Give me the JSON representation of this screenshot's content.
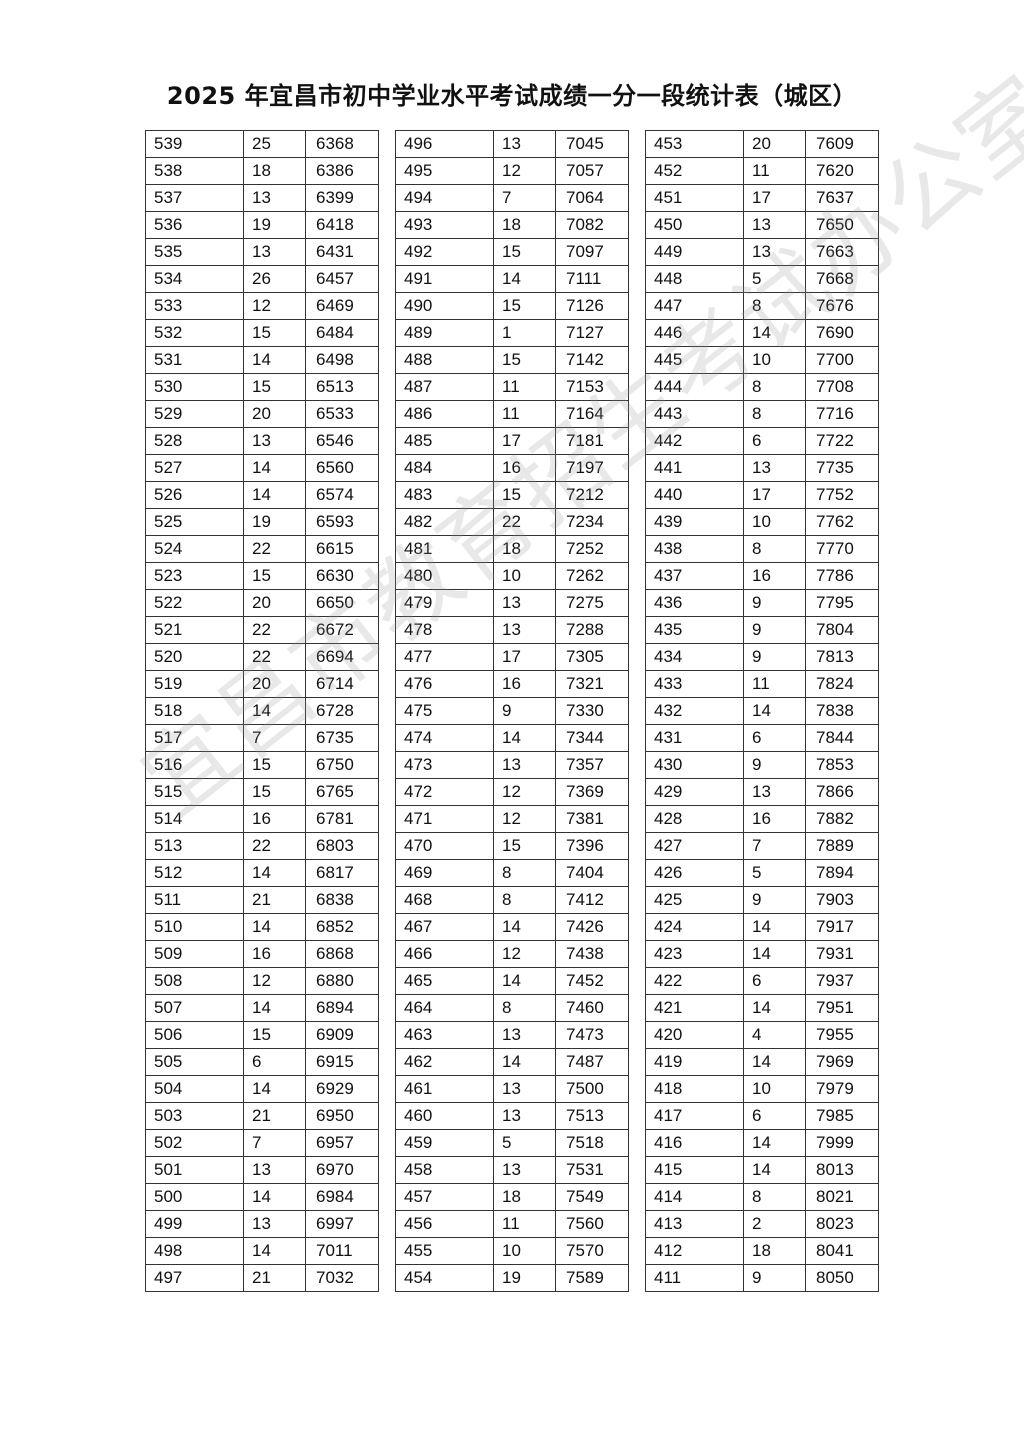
{
  "title": "2025 年宜昌市初中学业水平考试成绩一分一段统计表（城区）",
  "watermark": "宜昌市教育招生考试办公室",
  "tables": [
    [
      [
        "539",
        "25",
        "6368"
      ],
      [
        "538",
        "18",
        "6386"
      ],
      [
        "537",
        "13",
        "6399"
      ],
      [
        "536",
        "19",
        "6418"
      ],
      [
        "535",
        "13",
        "6431"
      ],
      [
        "534",
        "26",
        "6457"
      ],
      [
        "533",
        "12",
        "6469"
      ],
      [
        "532",
        "15",
        "6484"
      ],
      [
        "531",
        "14",
        "6498"
      ],
      [
        "530",
        "15",
        "6513"
      ],
      [
        "529",
        "20",
        "6533"
      ],
      [
        "528",
        "13",
        "6546"
      ],
      [
        "527",
        "14",
        "6560"
      ],
      [
        "526",
        "14",
        "6574"
      ],
      [
        "525",
        "19",
        "6593"
      ],
      [
        "524",
        "22",
        "6615"
      ],
      [
        "523",
        "15",
        "6630"
      ],
      [
        "522",
        "20",
        "6650"
      ],
      [
        "521",
        "22",
        "6672"
      ],
      [
        "520",
        "22",
        "6694"
      ],
      [
        "519",
        "20",
        "6714"
      ],
      [
        "518",
        "14",
        "6728"
      ],
      [
        "517",
        "7",
        "6735"
      ],
      [
        "516",
        "15",
        "6750"
      ],
      [
        "515",
        "15",
        "6765"
      ],
      [
        "514",
        "16",
        "6781"
      ],
      [
        "513",
        "22",
        "6803"
      ],
      [
        "512",
        "14",
        "6817"
      ],
      [
        "511",
        "21",
        "6838"
      ],
      [
        "510",
        "14",
        "6852"
      ],
      [
        "509",
        "16",
        "6868"
      ],
      [
        "508",
        "12",
        "6880"
      ],
      [
        "507",
        "14",
        "6894"
      ],
      [
        "506",
        "15",
        "6909"
      ],
      [
        "505",
        "6",
        "6915"
      ],
      [
        "504",
        "14",
        "6929"
      ],
      [
        "503",
        "21",
        "6950"
      ],
      [
        "502",
        "7",
        "6957"
      ],
      [
        "501",
        "13",
        "6970"
      ],
      [
        "500",
        "14",
        "6984"
      ],
      [
        "499",
        "13",
        "6997"
      ],
      [
        "498",
        "14",
        "7011"
      ],
      [
        "497",
        "21",
        "7032"
      ]
    ],
    [
      [
        "496",
        "13",
        "7045"
      ],
      [
        "495",
        "12",
        "7057"
      ],
      [
        "494",
        "7",
        "7064"
      ],
      [
        "493",
        "18",
        "7082"
      ],
      [
        "492",
        "15",
        "7097"
      ],
      [
        "491",
        "14",
        "7111"
      ],
      [
        "490",
        "15",
        "7126"
      ],
      [
        "489",
        "1",
        "7127"
      ],
      [
        "488",
        "15",
        "7142"
      ],
      [
        "487",
        "11",
        "7153"
      ],
      [
        "486",
        "11",
        "7164"
      ],
      [
        "485",
        "17",
        "7181"
      ],
      [
        "484",
        "16",
        "7197"
      ],
      [
        "483",
        "15",
        "7212"
      ],
      [
        "482",
        "22",
        "7234"
      ],
      [
        "481",
        "18",
        "7252"
      ],
      [
        "480",
        "10",
        "7262"
      ],
      [
        "479",
        "13",
        "7275"
      ],
      [
        "478",
        "13",
        "7288"
      ],
      [
        "477",
        "17",
        "7305"
      ],
      [
        "476",
        "16",
        "7321"
      ],
      [
        "475",
        "9",
        "7330"
      ],
      [
        "474",
        "14",
        "7344"
      ],
      [
        "473",
        "13",
        "7357"
      ],
      [
        "472",
        "12",
        "7369"
      ],
      [
        "471",
        "12",
        "7381"
      ],
      [
        "470",
        "15",
        "7396"
      ],
      [
        "469",
        "8",
        "7404"
      ],
      [
        "468",
        "8",
        "7412"
      ],
      [
        "467",
        "14",
        "7426"
      ],
      [
        "466",
        "12",
        "7438"
      ],
      [
        "465",
        "14",
        "7452"
      ],
      [
        "464",
        "8",
        "7460"
      ],
      [
        "463",
        "13",
        "7473"
      ],
      [
        "462",
        "14",
        "7487"
      ],
      [
        "461",
        "13",
        "7500"
      ],
      [
        "460",
        "13",
        "7513"
      ],
      [
        "459",
        "5",
        "7518"
      ],
      [
        "458",
        "13",
        "7531"
      ],
      [
        "457",
        "18",
        "7549"
      ],
      [
        "456",
        "11",
        "7560"
      ],
      [
        "455",
        "10",
        "7570"
      ],
      [
        "454",
        "19",
        "7589"
      ]
    ],
    [
      [
        "453",
        "20",
        "7609"
      ],
      [
        "452",
        "11",
        "7620"
      ],
      [
        "451",
        "17",
        "7637"
      ],
      [
        "450",
        "13",
        "7650"
      ],
      [
        "449",
        "13",
        "7663"
      ],
      [
        "448",
        "5",
        "7668"
      ],
      [
        "447",
        "8",
        "7676"
      ],
      [
        "446",
        "14",
        "7690"
      ],
      [
        "445",
        "10",
        "7700"
      ],
      [
        "444",
        "8",
        "7708"
      ],
      [
        "443",
        "8",
        "7716"
      ],
      [
        "442",
        "6",
        "7722"
      ],
      [
        "441",
        "13",
        "7735"
      ],
      [
        "440",
        "17",
        "7752"
      ],
      [
        "439",
        "10",
        "7762"
      ],
      [
        "438",
        "8",
        "7770"
      ],
      [
        "437",
        "16",
        "7786"
      ],
      [
        "436",
        "9",
        "7795"
      ],
      [
        "435",
        "9",
        "7804"
      ],
      [
        "434",
        "9",
        "7813"
      ],
      [
        "433",
        "11",
        "7824"
      ],
      [
        "432",
        "14",
        "7838"
      ],
      [
        "431",
        "6",
        "7844"
      ],
      [
        "430",
        "9",
        "7853"
      ],
      [
        "429",
        "13",
        "7866"
      ],
      [
        "428",
        "16",
        "7882"
      ],
      [
        "427",
        "7",
        "7889"
      ],
      [
        "426",
        "5",
        "7894"
      ],
      [
        "425",
        "9",
        "7903"
      ],
      [
        "424",
        "14",
        "7917"
      ],
      [
        "423",
        "14",
        "7931"
      ],
      [
        "422",
        "6",
        "7937"
      ],
      [
        "421",
        "14",
        "7951"
      ],
      [
        "420",
        "4",
        "7955"
      ],
      [
        "419",
        "14",
        "7969"
      ],
      [
        "418",
        "10",
        "7979"
      ],
      [
        "417",
        "6",
        "7985"
      ],
      [
        "416",
        "14",
        "7999"
      ],
      [
        "415",
        "14",
        "8013"
      ],
      [
        "414",
        "8",
        "8021"
      ],
      [
        "413",
        "2",
        "8023"
      ],
      [
        "412",
        "18",
        "8041"
      ],
      [
        "411",
        "9",
        "8050"
      ]
    ]
  ]
}
